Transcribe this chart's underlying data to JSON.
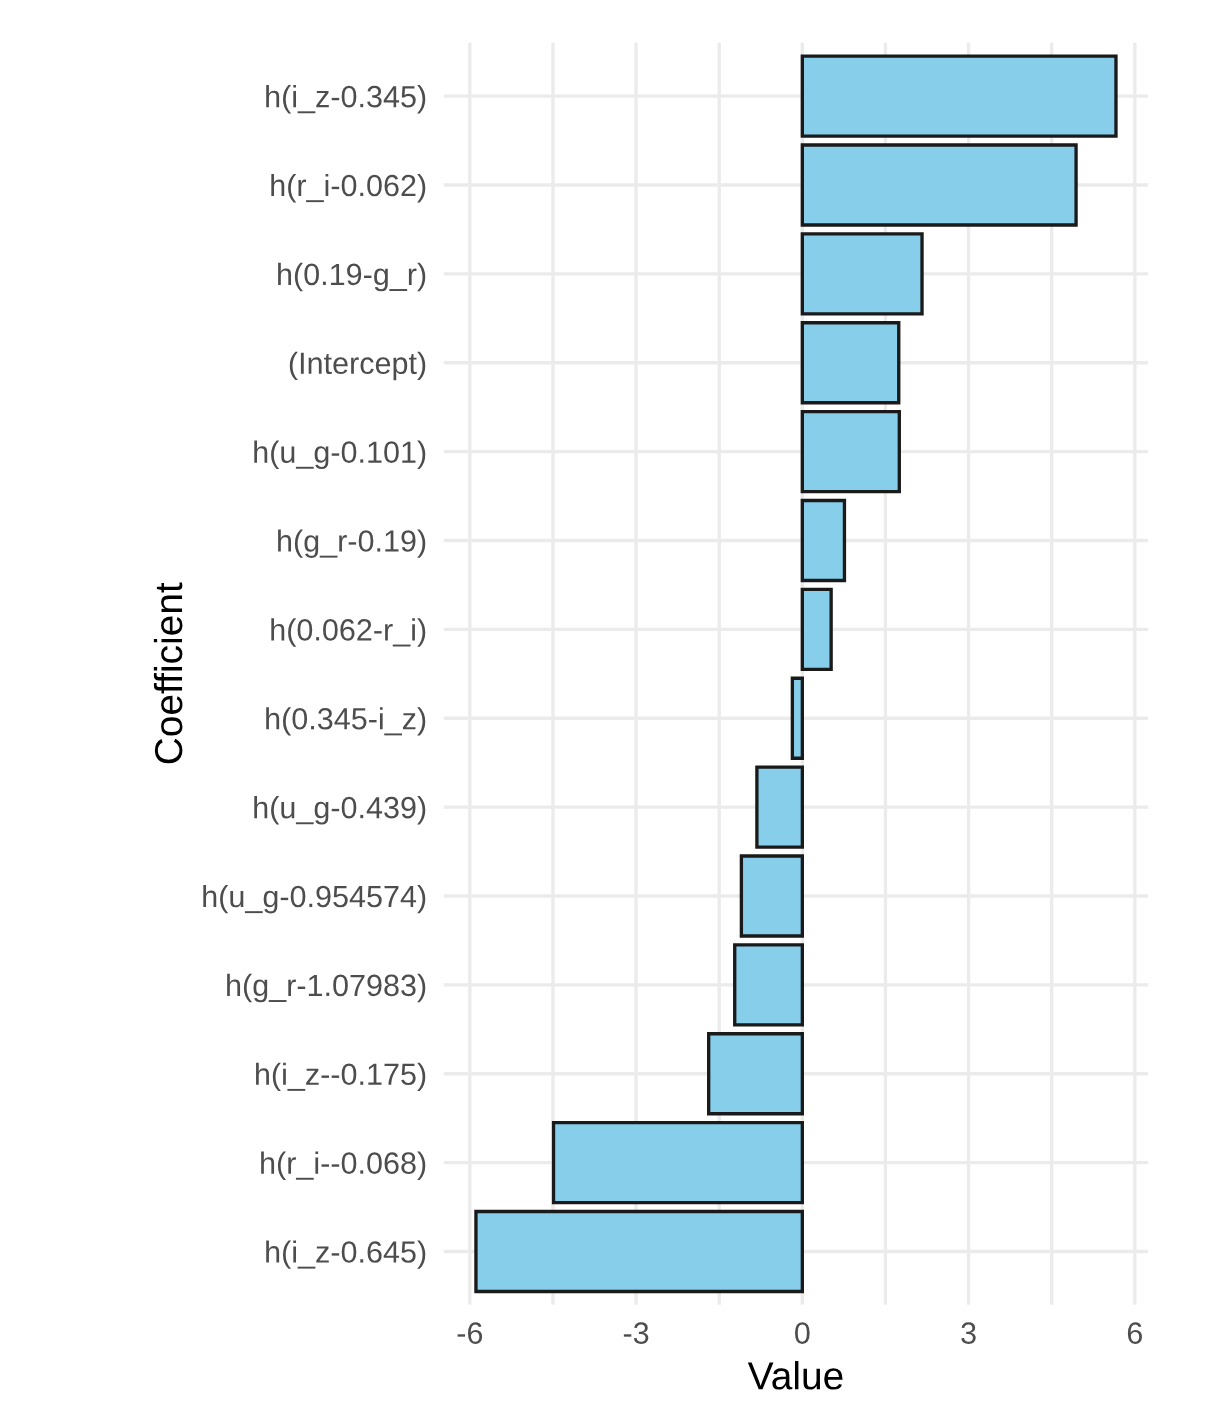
{
  "chart_data": {
    "type": "bar",
    "orientation": "horizontal",
    "xlabel": "Value",
    "ylabel": "Coefficient",
    "categories": [
      "h(i_z-0.345)",
      "h(r_i-0.062)",
      "h(0.19-g_r)",
      "(Intercept)",
      "h(u_g-0.101)",
      "h(g_r-0.19)",
      "h(0.062-r_i)",
      "h(0.345-i_z)",
      "h(u_g-0.439)",
      "h(u_g-0.954574)",
      "h(g_r-1.07983)",
      "h(i_z--0.175)",
      "h(r_i--0.068)",
      "h(i_z-0.645)"
    ],
    "values": [
      5.66,
      4.94,
      2.16,
      1.74,
      1.75,
      0.76,
      0.52,
      -0.18,
      -0.82,
      -1.1,
      -1.22,
      -1.69,
      -4.49,
      -5.89
    ],
    "color": "#87ceeb",
    "xlim": [
      -6.47,
      6.24
    ],
    "xticks": [
      -6,
      {
        "value": -4.5,
        "label": null
      },
      -3,
      {
        "value": -1.5,
        "label": null
      },
      0,
      {
        "value": 1.5,
        "label": null
      },
      3,
      {
        "value": 4.5,
        "label": null
      },
      6
    ],
    "grid": true
  }
}
